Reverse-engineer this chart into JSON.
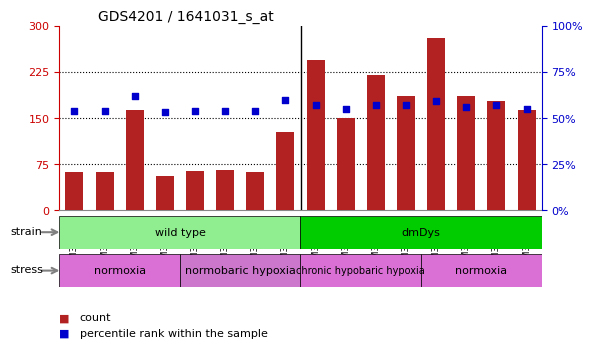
{
  "title": "GDS4201 / 1641031_s_at",
  "samples": [
    "GSM398839",
    "GSM398840",
    "GSM398841",
    "GSM398842",
    "GSM398835",
    "GSM398836",
    "GSM398837",
    "GSM398838",
    "GSM398827",
    "GSM398828",
    "GSM398829",
    "GSM398830",
    "GSM398831",
    "GSM398832",
    "GSM398833",
    "GSM398834"
  ],
  "counts": [
    62,
    62,
    163,
    55,
    63,
    65,
    62,
    127,
    245,
    150,
    220,
    185,
    280,
    185,
    178,
    163
  ],
  "percentile_ranks": [
    54,
    54,
    62,
    53,
    54,
    54,
    54,
    60,
    57,
    55,
    57,
    57,
    59,
    56,
    57,
    55
  ],
  "bar_color": "#b22222",
  "dot_color": "#0000cd",
  "left_yaxis": {
    "min": 0,
    "max": 300,
    "ticks": [
      0,
      75,
      150,
      225,
      300
    ],
    "color": "#cc0000"
  },
  "right_yaxis": {
    "min": 0,
    "max": 100,
    "ticks": [
      0,
      25,
      50,
      75,
      100
    ],
    "color": "#0000cc",
    "tick_labels": [
      "0%",
      "25%",
      "50%",
      "75%",
      "100%"
    ]
  },
  "strain_groups": [
    {
      "label": "wild type",
      "start": 0,
      "end": 8,
      "color": "#90ee90"
    },
    {
      "label": "dmDys",
      "start": 8,
      "end": 16,
      "color": "#00cc00"
    }
  ],
  "stress_groups": [
    {
      "label": "normoxia",
      "start": 0,
      "end": 4,
      "color": "#da70d6"
    },
    {
      "label": "normobaric hypoxia",
      "start": 4,
      "end": 8,
      "color": "#cc77cc"
    },
    {
      "label": "chronic hypobaric hypoxia",
      "start": 8,
      "end": 12,
      "color": "#da70d6"
    },
    {
      "label": "normoxia",
      "start": 12,
      "end": 16,
      "color": "#da70d6"
    }
  ],
  "legend_items": [
    {
      "label": "count",
      "color": "#b22222",
      "marker": "s"
    },
    {
      "label": "percentile rank within the sample",
      "color": "#0000cd",
      "marker": "s"
    }
  ],
  "background_color": "#ffffff",
  "grid_color": "#000000",
  "bar_width": 0.6
}
